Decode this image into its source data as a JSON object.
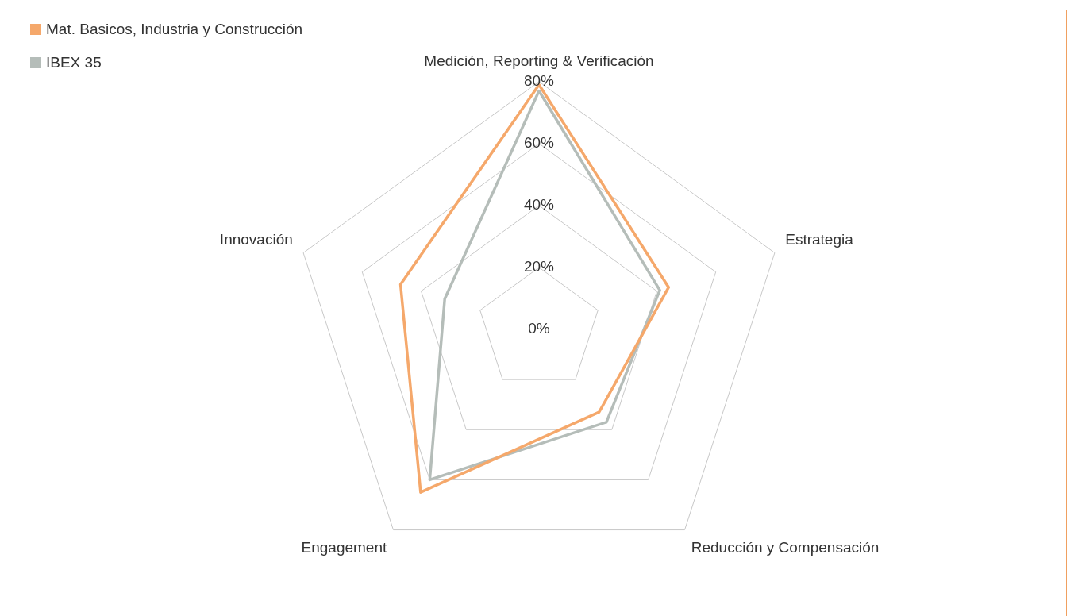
{
  "chart_data": {
    "type": "radar",
    "categories": [
      "Medición, Reporting & Verificación",
      "Estrategia",
      "Reducción y Compensación",
      "Engagement",
      "Innovación"
    ],
    "series": [
      {
        "name": "Mat. Basicos, Industria y Construcción",
        "color": "#f5a86b",
        "values": [
          79,
          44,
          33,
          65,
          47
        ]
      },
      {
        "name": "IBEX 35",
        "color": "#b5bdb9",
        "values": [
          77,
          41,
          37,
          60,
          32
        ]
      }
    ],
    "ylim": [
      0,
      80
    ],
    "yticks": [
      {
        "value": 0,
        "label": "0%"
      },
      {
        "value": 20,
        "label": "20%"
      },
      {
        "value": 40,
        "label": "40%"
      },
      {
        "value": 60,
        "label": "60%"
      },
      {
        "value": 80,
        "label": "80%"
      }
    ],
    "grid": true,
    "legend": "top left"
  }
}
